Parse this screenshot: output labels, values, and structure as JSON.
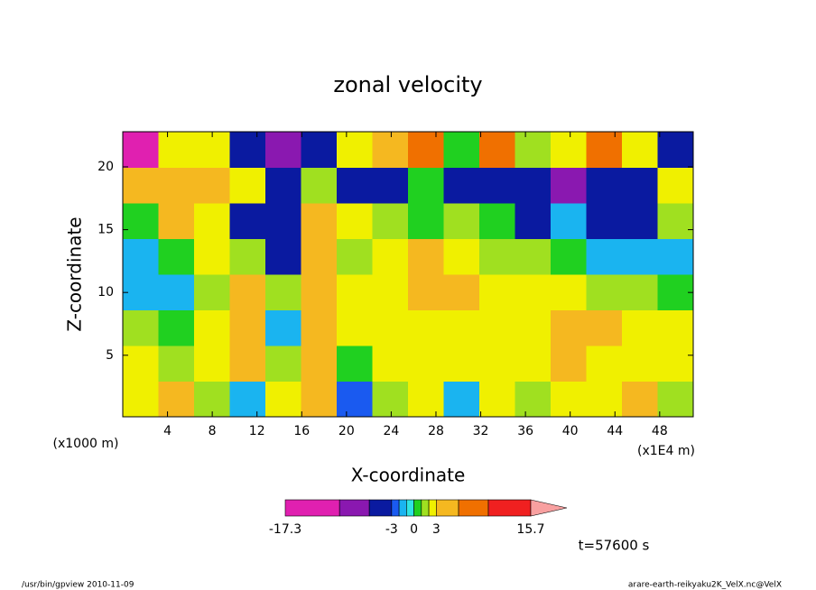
{
  "chart_data": {
    "type": "contour",
    "title": "zonal velocity",
    "xlabel": "X-coordinate",
    "ylabel": "Z-coordinate",
    "x_unit": "(x1E4 m)",
    "y_unit": "(x1000 m)",
    "time_label": "t=57600 s",
    "footer_left": "/usr/bin/gpview   2010-11-09",
    "footer_right": "arare-earth-reikyaku2K_VelX.nc@VelX",
    "xlim": [
      0,
      51
    ],
    "ylim": [
      0.1,
      22.8
    ],
    "xticks": [
      4,
      8,
      12,
      16,
      20,
      24,
      28,
      32,
      36,
      40,
      44,
      48
    ],
    "yticks": [
      5,
      10,
      15,
      20
    ],
    "z": [
      [
        2,
        4,
        1,
        -1.5,
        2,
        4,
        -3,
        1,
        2,
        -1.5,
        2,
        1,
        2,
        2,
        3,
        1
      ],
      [
        2,
        1,
        2,
        4,
        1,
        5,
        0.5,
        2,
        2.5,
        2,
        2.5,
        2.5,
        4,
        2.5,
        2.5,
        2.5
      ],
      [
        1,
        0.5,
        2,
        4,
        -2,
        5,
        2,
        2.5,
        2.5,
        2.5,
        2.5,
        2.5,
        4,
        4,
        2.5,
        2.5
      ],
      [
        -1.5,
        -1.5,
        1,
        3.5,
        1,
        5,
        2,
        2.5,
        4,
        4,
        2.5,
        2.5,
        2.5,
        1,
        1,
        0.5
      ],
      [
        -1.5,
        0.5,
        2,
        1,
        -4,
        5,
        1,
        2.5,
        4,
        2.5,
        1,
        1,
        0.5,
        -1.5,
        -1.5,
        -1.5
      ],
      [
        0.5,
        4,
        2.5,
        -4,
        -5,
        5,
        2.5,
        1,
        0.5,
        1,
        0.5,
        -4,
        -1.5,
        -4,
        -4,
        1
      ],
      [
        5,
        5,
        4,
        2.5,
        -4,
        1,
        -4,
        -4,
        0.5,
        -4,
        -4,
        -4,
        -7,
        -4,
        -4,
        2
      ],
      [
        -12,
        2.5,
        2.5,
        -4,
        -7,
        -4,
        2.5,
        4,
        7,
        0.5,
        7,
        1,
        2.5,
        7,
        2.5,
        -4
      ]
    ],
    "colorbar": {
      "levels": [
        -17.3,
        -10,
        -6,
        -3,
        -2,
        -1,
        0,
        1,
        2,
        3,
        6,
        10,
        15.7
      ],
      "colors": [
        "#e020b0",
        "#8a18b0",
        "#0a1aa0",
        "#1a5af0",
        "#1ab4f0",
        "#30e4e4",
        "#20d020",
        "#a0e020",
        "#f0f000",
        "#f5b820",
        "#f07000",
        "#f02020"
      ],
      "extend_color": "#f8a0a0",
      "ticks": [
        -17.3,
        -3,
        0,
        3,
        15.7
      ]
    }
  }
}
